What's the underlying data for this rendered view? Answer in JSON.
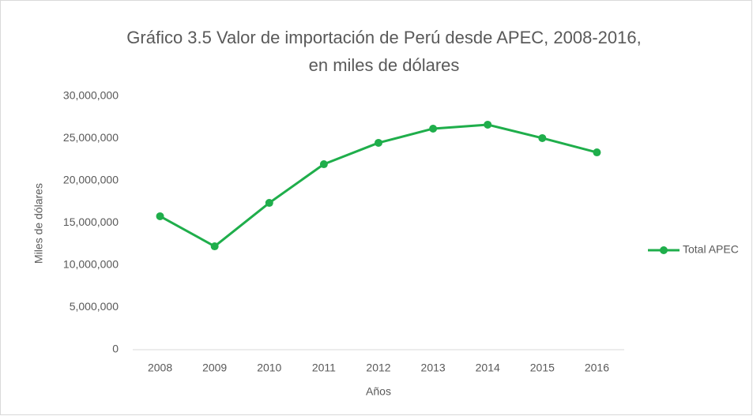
{
  "chart_data": {
    "type": "line",
    "title": [
      "Gráfico 3.5 Valor de importación de Perú desde APEC, 2008-2016,",
      "en miles de dólares"
    ],
    "x_label": "Años",
    "y_label": "Miles de dólares",
    "categories": [
      "2008",
      "2009",
      "2010",
      "2011",
      "2012",
      "2013",
      "2014",
      "2015",
      "2016"
    ],
    "series": [
      {
        "name": "Total APEC",
        "color": "#1fae4b",
        "values": [
          15800000,
          12240000,
          17380000,
          21960000,
          24490000,
          26170000,
          26640000,
          25050000,
          23360000
        ]
      }
    ],
    "ylim": [
      0,
      30000000
    ],
    "yticks": [
      0,
      {
        "value": 5000000,
        "label": "5,000,000"
      },
      {
        "value": 10000000,
        "label": "10,000,000"
      },
      {
        "value": 15000000,
        "label": "15,000,000"
      },
      {
        "value": 20000000,
        "label": "20,000,000"
      },
      {
        "value": 25000000,
        "label": "25,000,000"
      },
      {
        "value": 30000000,
        "label": "30,000,000"
      }
    ],
    "grid": false,
    "legend": "right"
  }
}
